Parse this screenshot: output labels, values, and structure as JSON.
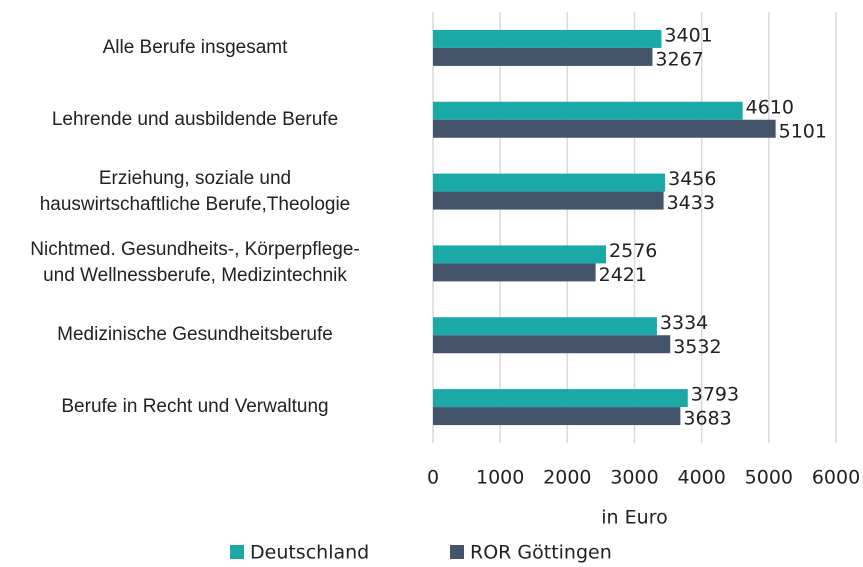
{
  "chart_data": {
    "type": "bar",
    "orientation": "horizontal",
    "categories": [
      "Alle Berufe insgesamt",
      "Lehrende und ausbildende Berufe",
      "Erziehung, soziale und\nhauswirtschaftliche Berufe,Theologie",
      "Nichtmed. Gesundheits-, Körperpflege-\nund Wellnessberufe, Medizintechnik",
      "Medizinische Gesundheitsberufe",
      "Berufe in Recht und Verwaltung"
    ],
    "series": [
      {
        "name": "Deutschland",
        "color": "#1aa9a6",
        "values": [
          3401,
          4610,
          3456,
          2576,
          3334,
          3793
        ]
      },
      {
        "name": "ROR Göttingen",
        "color": "#44546a",
        "values": [
          3267,
          5101,
          3433,
          2421,
          3532,
          3683
        ]
      }
    ],
    "xlabel": "in Euro",
    "xlim": [
      0,
      6000
    ],
    "xticks": [
      0,
      1000,
      2000,
      3000,
      4000,
      5000,
      6000
    ],
    "grid": true,
    "legend": "bottom"
  }
}
